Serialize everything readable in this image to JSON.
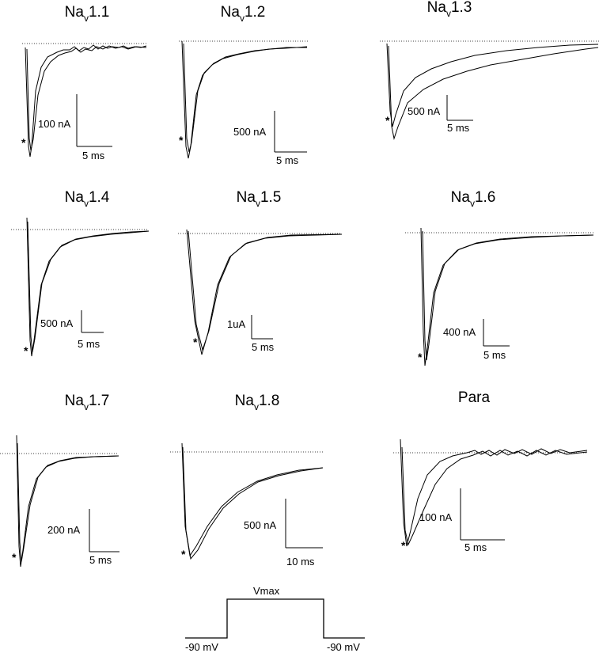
{
  "panels": [
    {
      "base": "Na",
      "sub": "v",
      "num": "1.1",
      "amp": "100 nA",
      "time": "5 ms",
      "marker": "*"
    },
    {
      "base": "Na",
      "sub": "v",
      "num": "1.2",
      "amp": "500 nA",
      "time": "5 ms",
      "marker": "*"
    },
    {
      "base": "Na",
      "sub": "v",
      "num": "1.3",
      "amp": "500 nA",
      "time": "5 ms",
      "marker": "*"
    },
    {
      "base": "Na",
      "sub": "v",
      "num": "1.4",
      "amp": "500 nA",
      "time": "5 ms",
      "marker": "*"
    },
    {
      "base": "Na",
      "sub": "v",
      "num": "1.5",
      "amp": "1uA",
      "time": "5 ms",
      "marker": "*"
    },
    {
      "base": "Na",
      "sub": "v",
      "num": "1.6",
      "amp": "400 nA",
      "time": "5 ms",
      "marker": "*"
    },
    {
      "base": "Na",
      "sub": "v",
      "num": "1.7",
      "amp": "200 nA",
      "time": "5 ms",
      "marker": "*"
    },
    {
      "base": "Na",
      "sub": "v",
      "num": "1.8",
      "amp": "500 nA",
      "time": "10 ms",
      "marker": "*"
    },
    {
      "base": "Para",
      "sub": "",
      "num": "",
      "amp": "100 nA",
      "time": "5 ms",
      "marker": "*"
    }
  ],
  "protocol": {
    "top": "Vmax",
    "left": "-90 mV",
    "right": "-90 mV"
  }
}
